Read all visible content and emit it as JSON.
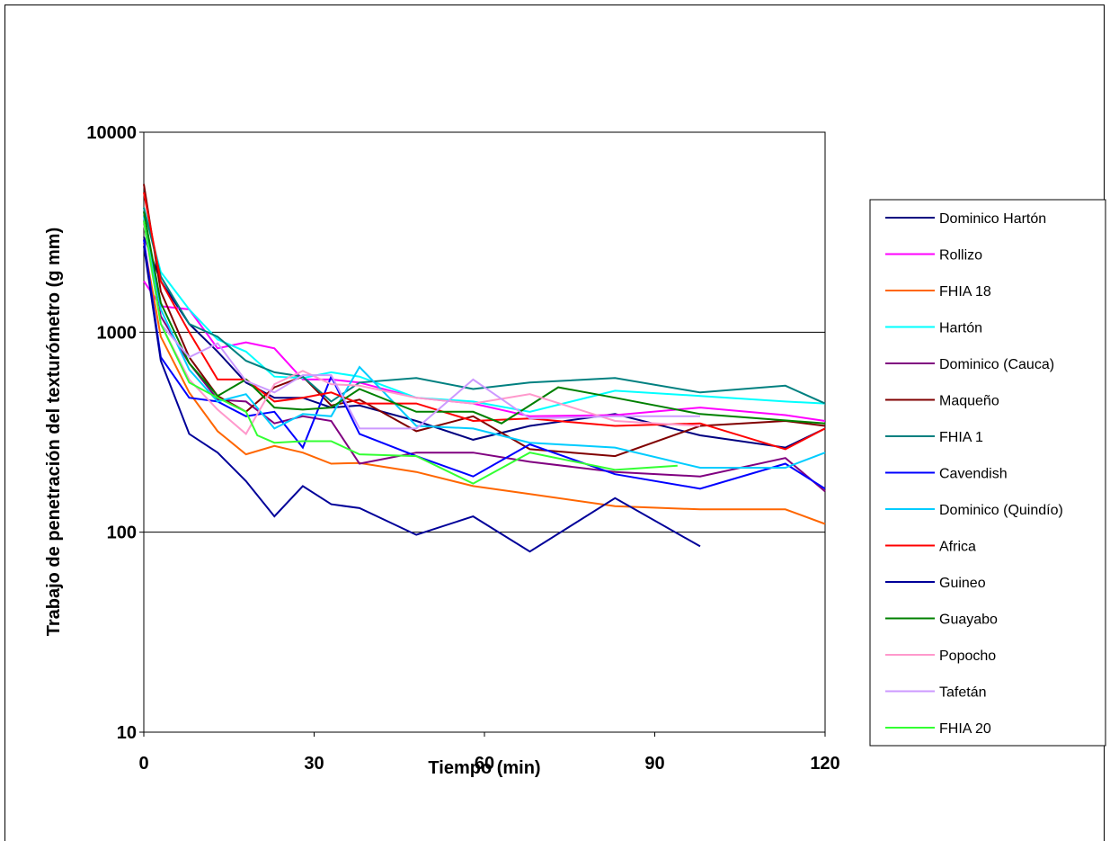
{
  "chart_data": {
    "type": "line",
    "title": "",
    "xlabel": "Tiempo (min)",
    "ylabel": "Trabajo de penetración del texturómetro (g mm)",
    "xlim": [
      0,
      120
    ],
    "ylim": [
      10,
      10000
    ],
    "yscale": "log",
    "xticks": [
      "0",
      "30",
      "60",
      "90",
      "120"
    ],
    "yticks": [
      "10",
      "100",
      "1000",
      "10000"
    ],
    "grid": "horizontal major gridlines",
    "legend_position": "right",
    "series": [
      {
        "name": "Dominico Hartón",
        "color": "#000080",
        "x": [
          0,
          3,
          8,
          13,
          18,
          23,
          28,
          33,
          38,
          48,
          58,
          68,
          83,
          98,
          113,
          120
        ],
        "y": [
          3000,
          1800,
          1100,
          800,
          560,
          470,
          470,
          420,
          430,
          360,
          290,
          340,
          390,
          305,
          265,
          330
        ]
      },
      {
        "name": "Rollizo",
        "color": "#FF00FF",
        "x": [
          0,
          3,
          8,
          13,
          18,
          23,
          28,
          33,
          38,
          48,
          58,
          68,
          83,
          98,
          113,
          120
        ],
        "y": [
          1800,
          1350,
          1300,
          830,
          890,
          830,
          580,
          580,
          560,
          470,
          440,
          380,
          385,
          420,
          385,
          360
        ]
      },
      {
        "name": "FHIA 18",
        "color": "#FF6600",
        "x": [
          0,
          3,
          8,
          13,
          18,
          23,
          28,
          33,
          38,
          48,
          58,
          68,
          83,
          98,
          113,
          120
        ],
        "y": [
          2800,
          950,
          500,
          320,
          245,
          270,
          250,
          220,
          222,
          200,
          170,
          155,
          135,
          130,
          130,
          110
        ]
      },
      {
        "name": "Hartón",
        "color": "#00FFFF",
        "x": [
          0,
          3,
          8,
          13,
          18,
          23,
          28,
          33,
          38,
          48,
          58,
          68,
          83,
          98,
          113,
          120
        ],
        "y": [
          4200,
          2000,
          1300,
          920,
          800,
          600,
          590,
          630,
          600,
          470,
          450,
          400,
          510,
          480,
          450,
          440
        ]
      },
      {
        "name": "Dominico (Cauca)",
        "color": "#800080",
        "x": [
          0,
          3,
          8,
          13,
          18,
          23,
          28,
          33,
          38,
          48,
          58,
          68,
          83,
          98,
          113,
          120
        ],
        "y": [
          3500,
          1200,
          700,
          460,
          450,
          350,
          380,
          360,
          220,
          250,
          250,
          225,
          200,
          190,
          235,
          160
        ]
      },
      {
        "name": "Maqueño",
        "color": "#800000",
        "x": [
          0,
          3,
          8,
          13,
          18,
          23,
          28,
          33,
          38,
          48,
          58,
          68,
          83,
          98,
          113,
          120
        ],
        "y": [
          5500,
          1600,
          750,
          480,
          400,
          530,
          600,
          430,
          460,
          320,
          380,
          260,
          240,
          340,
          360,
          340
        ]
      },
      {
        "name": "FHIA 1",
        "color": "#008080",
        "x": [
          0,
          3,
          8,
          13,
          18,
          23,
          28,
          33,
          38,
          48,
          58,
          68,
          83,
          98,
          113,
          120
        ],
        "y": [
          4200,
          1900,
          1100,
          950,
          720,
          630,
          600,
          450,
          560,
          590,
          520,
          560,
          590,
          500,
          540,
          440
        ]
      },
      {
        "name": "Cavendish",
        "color": "#0000FF",
        "x": [
          0,
          3,
          8,
          13,
          18,
          23,
          28,
          33,
          38,
          48,
          58,
          68,
          83,
          98,
          113,
          120
        ],
        "y": [
          2900,
          750,
          470,
          450,
          380,
          400,
          265,
          600,
          310,
          240,
          190,
          275,
          195,
          165,
          220,
          165
        ]
      },
      {
        "name": "Dominico (Quindío)",
        "color": "#00CCFF",
        "x": [
          0,
          3,
          8,
          13,
          18,
          23,
          28,
          33,
          38,
          48,
          58,
          68,
          83,
          98,
          113,
          120
        ],
        "y": [
          3800,
          1300,
          650,
          450,
          490,
          330,
          390,
          380,
          670,
          340,
          330,
          280,
          265,
          210,
          210,
          250
        ]
      },
      {
        "name": "Africa",
        "color": "#FF0000",
        "x": [
          0,
          3,
          8,
          13,
          18,
          23,
          28,
          33,
          38,
          48,
          58,
          68,
          83,
          98,
          113,
          120
        ],
        "y": [
          5000,
          1800,
          1000,
          580,
          580,
          450,
          470,
          500,
          440,
          440,
          360,
          370,
          340,
          350,
          260,
          330
        ]
      },
      {
        "name": "Guineo",
        "color": "#000099",
        "x": [
          0,
          3,
          8,
          13,
          18,
          23,
          28,
          33,
          38,
          48,
          58,
          68,
          83,
          98
        ],
        "y": [
          2700,
          720,
          310,
          250,
          180,
          120,
          170,
          138,
          132,
          97,
          120,
          80,
          148,
          85
        ]
      },
      {
        "name": "Guayabo",
        "color": "#008000",
        "x": [
          0,
          3,
          8,
          13,
          18,
          23,
          28,
          33,
          38,
          48,
          58,
          63,
          73,
          83,
          98,
          120
        ],
        "y": [
          4000,
          1400,
          700,
          480,
          580,
          420,
          410,
          420,
          520,
          400,
          400,
          350,
          530,
          470,
          390,
          350
        ]
      },
      {
        "name": "Popocho",
        "color": "#FF99CC",
        "x": [
          0,
          3,
          8,
          13,
          18,
          23,
          28,
          33,
          38,
          48,
          58,
          68,
          83,
          98
        ],
        "y": [
          3500,
          1100,
          580,
          410,
          310,
          550,
          640,
          550,
          540,
          470,
          440,
          490,
          360,
          340
        ]
      },
      {
        "name": "Tafetán",
        "color": "#CC99FF",
        "x": [
          0,
          3,
          8,
          13,
          18,
          23,
          28,
          33,
          38,
          48,
          58,
          68,
          83,
          98
        ],
        "y": [
          3600,
          1100,
          750,
          880,
          570,
          500,
          610,
          610,
          330,
          330,
          580,
          370,
          380,
          380
        ]
      },
      {
        "name": "FHIA 20",
        "color": "#33FF33",
        "x": [
          0,
          3,
          8,
          13,
          18,
          20,
          23,
          28,
          33,
          38,
          48,
          58,
          68,
          83,
          94
        ],
        "y": [
          3600,
          1100,
          560,
          470,
          400,
          305,
          280,
          285,
          285,
          245,
          240,
          175,
          250,
          205,
          215
        ]
      }
    ]
  }
}
